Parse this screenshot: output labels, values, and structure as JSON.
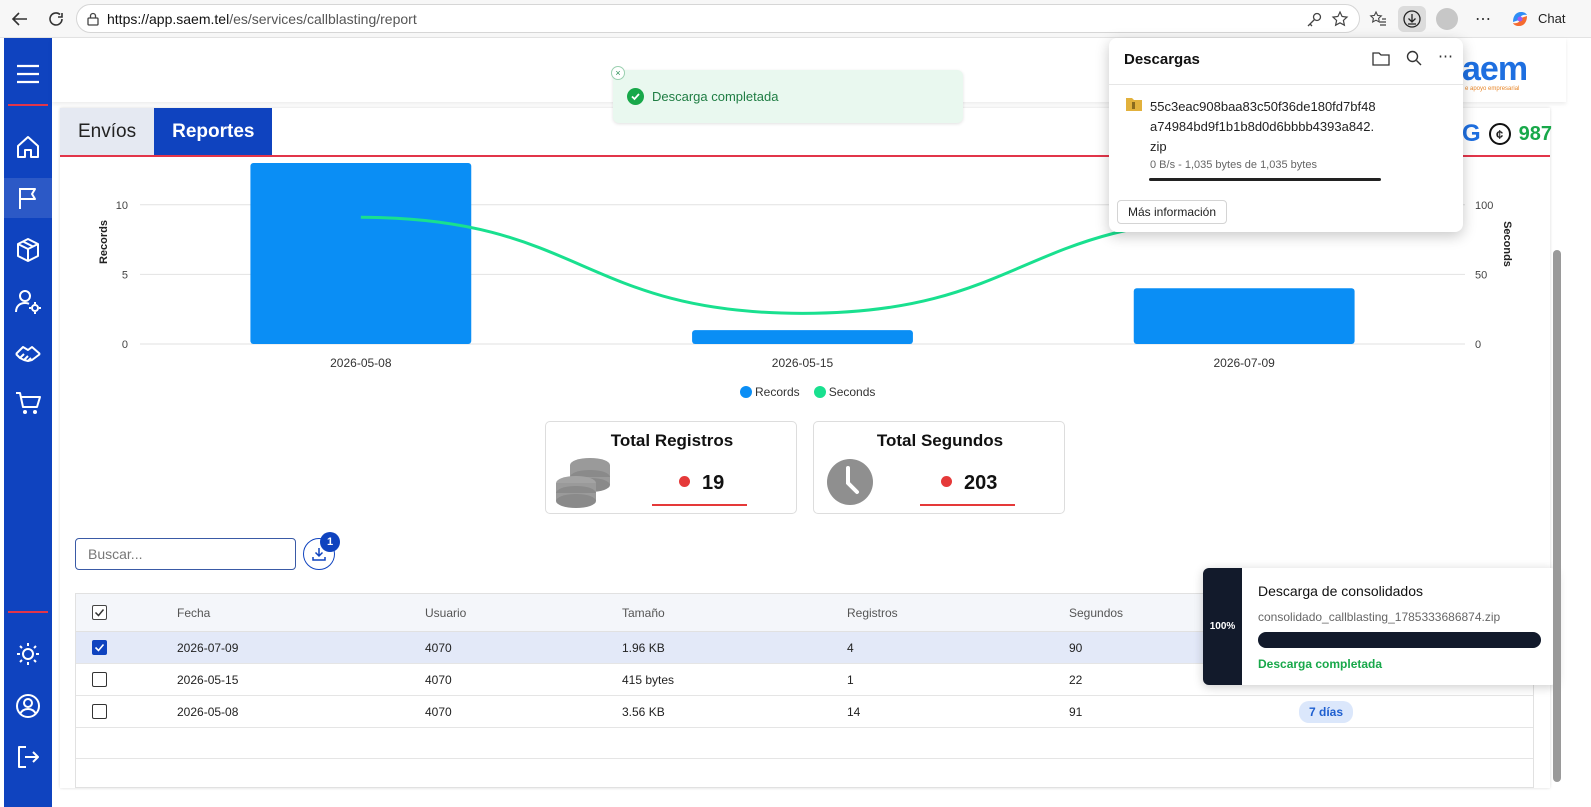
{
  "browser": {
    "url_host": "https://app.saem.tel",
    "url_path": "/es/services/callblasting/report",
    "chat_label": "Chat"
  },
  "header": {
    "logo_text": "aem",
    "logo_tagline": "e apoyo empresarial",
    "credits_prefix": "G",
    "credits_value": "987"
  },
  "tabs": [
    {
      "label": "Envíos",
      "active": false
    },
    {
      "label": "Reportes",
      "active": true
    }
  ],
  "toast": {
    "message": "Descarga completada",
    "close_glyph": "×"
  },
  "downloads_flyout": {
    "title": "Descargas",
    "file_name": "55c3eac908baa83c50f36de180fd7bf48a74984bd9f1b1b8d0d6bbbb4393a842.zip",
    "meta": "0 B/s - 1,035 bytes de 1,035 bytes",
    "more_info_label": "Más información"
  },
  "chart_data": {
    "type": "bar",
    "categories": [
      "2026-05-08",
      "2026-05-15",
      "2026-07-09"
    ],
    "series": [
      {
        "name": "Records",
        "type": "bar",
        "axis": "left",
        "values": [
          14,
          1,
          4
        ],
        "color": "#0a8ef5"
      },
      {
        "name": "Seconds",
        "type": "line",
        "axis": "right",
        "values": [
          91,
          22,
          90
        ],
        "color": "#19e08f"
      }
    ],
    "ylabel": "Records",
    "y2label": "Seconds",
    "ylim": [
      0,
      13
    ],
    "y2lim": [
      0,
      130
    ],
    "yticks": [
      "0",
      "5",
      "10"
    ],
    "y2ticks": [
      "0",
      "50",
      "100"
    ],
    "grid": true,
    "legend_position": "bottom"
  },
  "stats": {
    "registros": {
      "title": "Total Registros",
      "value": "19"
    },
    "segundos": {
      "title": "Total Segundos",
      "value": "203"
    }
  },
  "search": {
    "placeholder": "Buscar..."
  },
  "download_badge": "1",
  "table": {
    "headers": [
      "Fecha",
      "Usuario",
      "Tamaño",
      "Registros",
      "Segundos"
    ],
    "rows": [
      {
        "fecha": "2026-07-09",
        "usuario": "4070",
        "tamano": "1.96 KB",
        "registros": "4",
        "segundos": "90",
        "retencion": "",
        "checked": true
      },
      {
        "fecha": "2026-05-15",
        "usuario": "4070",
        "tamano": "415 bytes",
        "registros": "1",
        "segundos": "22",
        "retencion": "",
        "checked": false
      },
      {
        "fecha": "2026-05-08",
        "usuario": "4070",
        "tamano": "3.56 KB",
        "registros": "14",
        "segundos": "91",
        "retencion": "7 días",
        "checked": false
      }
    ]
  },
  "consolidated": {
    "percent_label": "100%",
    "progress": 1.0,
    "title": "Descarga de consolidados",
    "file_name": "consolidado_callblasting_1785333686874.zip",
    "status": "Descarga completada"
  },
  "colors": {
    "brand_blue": "#0f43bf",
    "accent_red": "#e2354a",
    "bar_blue": "#0a8ef5",
    "line_green": "#19e08f",
    "success_green": "#18a84a"
  }
}
